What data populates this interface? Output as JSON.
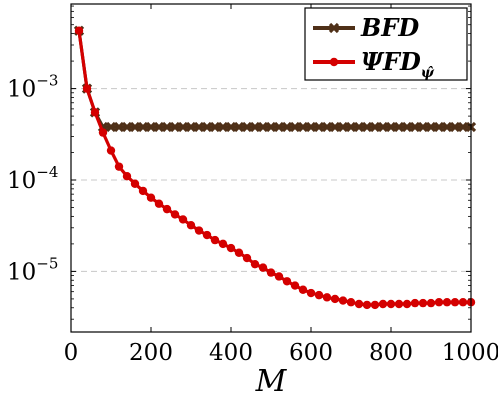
{
  "chart_data": {
    "type": "line",
    "title": "",
    "xlabel": "M",
    "ylabel": "",
    "xlim": [
      0,
      1000
    ],
    "ylim": [
      2.5e-06,
      0.0085
    ],
    "y_scale": "log",
    "x_ticks": [
      "0",
      "200",
      "400",
      "600",
      "800",
      "1000"
    ],
    "y_ticks": [
      {
        "value": 1e-05,
        "base": "10",
        "exp": "−5"
      },
      {
        "value": 0.0001,
        "base": "10",
        "exp": "−4"
      },
      {
        "value": 0.001,
        "base": "10",
        "exp": "−3"
      }
    ],
    "grid": "horizontal-dashed",
    "legend_position": "top-right",
    "series": [
      {
        "name": "BFD",
        "legend_main": "BFD",
        "legend_sub": "",
        "color": "#4f3018",
        "marker": "cross",
        "x": [
          20,
          40,
          60,
          80,
          100,
          120,
          140,
          160,
          180,
          200,
          220,
          240,
          260,
          280,
          300,
          320,
          340,
          360,
          380,
          400,
          420,
          440,
          460,
          480,
          500,
          520,
          540,
          560,
          580,
          600,
          620,
          640,
          660,
          680,
          700,
          720,
          740,
          760,
          780,
          800,
          820,
          840,
          860,
          880,
          900,
          920,
          940,
          960,
          980,
          1000
        ],
        "values": [
          0.0043,
          0.001,
          0.00055,
          0.00038,
          0.00038,
          0.00038,
          0.00038,
          0.00038,
          0.00038,
          0.00038,
          0.00038,
          0.00038,
          0.00038,
          0.00038,
          0.00038,
          0.00038,
          0.00038,
          0.00038,
          0.00038,
          0.00038,
          0.00038,
          0.00038,
          0.00038,
          0.00038,
          0.00038,
          0.00038,
          0.00038,
          0.00038,
          0.00038,
          0.00038,
          0.00038,
          0.00038,
          0.00038,
          0.00038,
          0.00038,
          0.00038,
          0.00038,
          0.00038,
          0.00038,
          0.00038,
          0.00038,
          0.00038,
          0.00038,
          0.00038,
          0.00038,
          0.00038,
          0.00038,
          0.00038,
          0.00038,
          0.00038
        ]
      },
      {
        "name": "ΨFD_ψ̂",
        "legend_main": "ΨFD",
        "legend_sub": "ψ̂",
        "color": "#d40000",
        "marker": "circle",
        "x": [
          20,
          40,
          60,
          80,
          100,
          120,
          140,
          160,
          180,
          200,
          220,
          240,
          260,
          280,
          300,
          320,
          340,
          360,
          380,
          400,
          420,
          440,
          460,
          480,
          500,
          520,
          540,
          560,
          580,
          600,
          620,
          640,
          660,
          680,
          700,
          720,
          740,
          760,
          780,
          800,
          820,
          840,
          860,
          880,
          900,
          920,
          940,
          960,
          980,
          1000
        ],
        "values": [
          0.0043,
          0.001,
          0.00055,
          0.00033,
          0.00021,
          0.00014,
          0.00011,
          9.1e-05,
          7.6e-05,
          6.4e-05,
          5.5e-05,
          4.8e-05,
          4.2e-05,
          3.7e-05,
          3.2e-05,
          2.8e-05,
          2.5e-05,
          2.2e-05,
          2e-05,
          1.8e-05,
          1.6e-05,
          1.4e-05,
          1.2e-05,
          1.1e-05,
          9.7e-06,
          8.8e-06,
          7.8e-06,
          7e-06,
          6.3e-06,
          5.8e-06,
          5.5e-06,
          5.2e-06,
          5e-06,
          4.8e-06,
          4.6e-06,
          4.4e-06,
          4.3e-06,
          4.3e-06,
          4.4e-06,
          4.4e-06,
          4.4e-06,
          4.4e-06,
          4.5e-06,
          4.5e-06,
          4.5e-06,
          4.6e-06,
          4.6e-06,
          4.6e-06,
          4.6e-06,
          4.6e-06
        ]
      }
    ]
  }
}
